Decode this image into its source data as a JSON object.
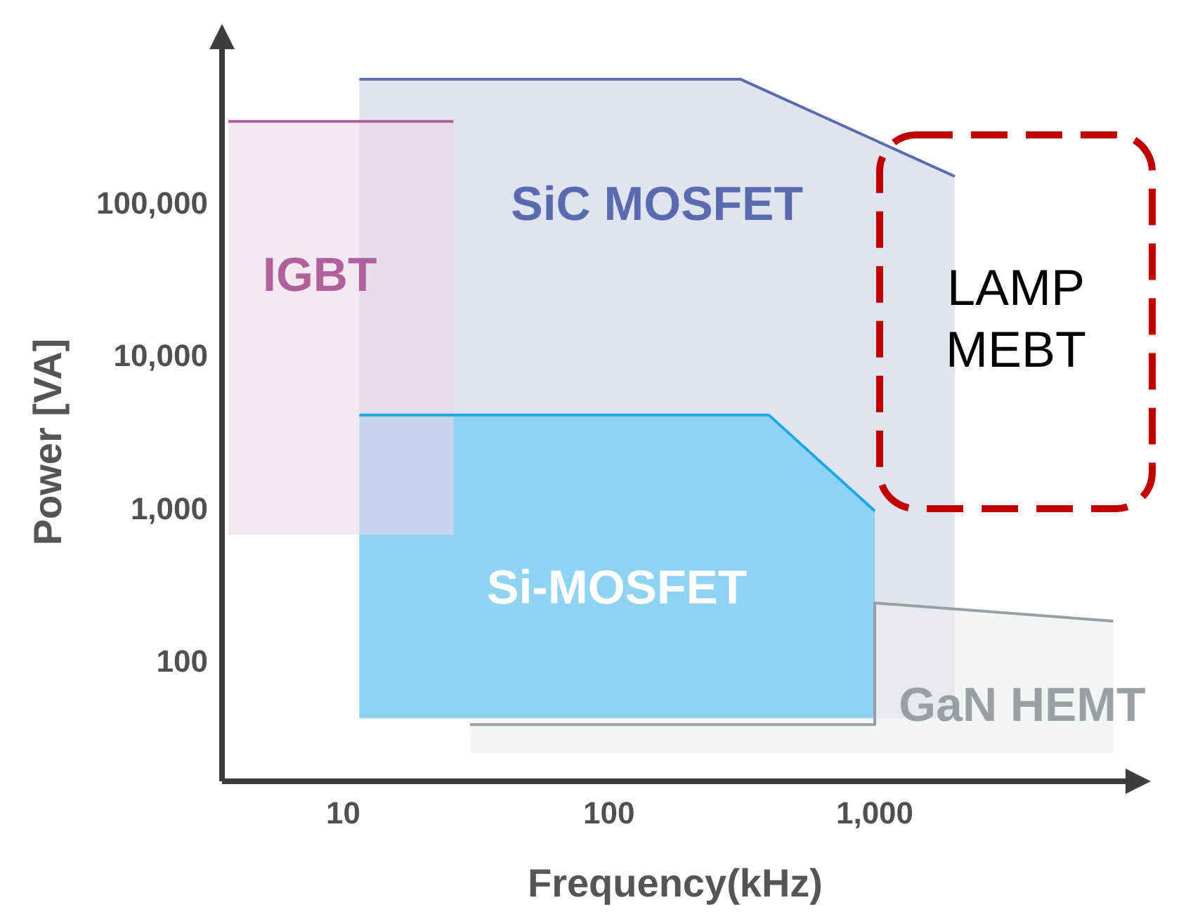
{
  "chart_data": {
    "type": "line",
    "xlabel": "Frequency(kHz)",
    "ylabel": "Power [VA]",
    "log": "xy",
    "xlim": [
      3.5,
      9000
    ],
    "ylim": [
      17,
      1100000
    ],
    "xticks": [
      10,
      100,
      {
        "value": 1000,
        "label": "1,000"
      }
    ],
    "yticks": [
      100,
      {
        "value": 1000,
        "label": "1,000"
      },
      {
        "value": 10000,
        "label": "10,000"
      },
      {
        "value": 100000,
        "label": "100,000"
      }
    ],
    "series": [
      {
        "name": "SiC MOSFET",
        "color": "#5a6aae",
        "x": [
          11.5,
          313,
          2000
        ],
        "values": [
          670000,
          670000,
          155000
        ],
        "lower": [
          44,
          44,
          44
        ],
        "upper": [
          670000,
          670000,
          155000
        ]
      },
      {
        "name": "GaN HEMT",
        "color": "#9a9fa4",
        "x": [
          30,
          1000,
          1000,
          7900
        ],
        "values": [
          40,
          40,
          250,
          190
        ],
        "lower": [
          26,
          26,
          26,
          26
        ],
        "upper": [
          40,
          40,
          250,
          190
        ]
      },
      {
        "name": "Si-MOSFET",
        "color": "#1aa8e8",
        "x": [
          11.5,
          400,
          1000
        ],
        "values": [
          4240,
          4240,
          1000
        ],
        "lower": [
          44,
          44,
          44
        ],
        "upper": [
          4240,
          4240,
          1000
        ]
      },
      {
        "name": "IGBT",
        "color": "#b0609a",
        "x": [
          3.7,
          26
        ],
        "values": [
          355000,
          355000
        ],
        "lower": [
          700,
          700
        ],
        "upper": [
          355000,
          355000
        ]
      }
    ],
    "annotations": [
      "LAMP MEBT"
    ]
  }
}
